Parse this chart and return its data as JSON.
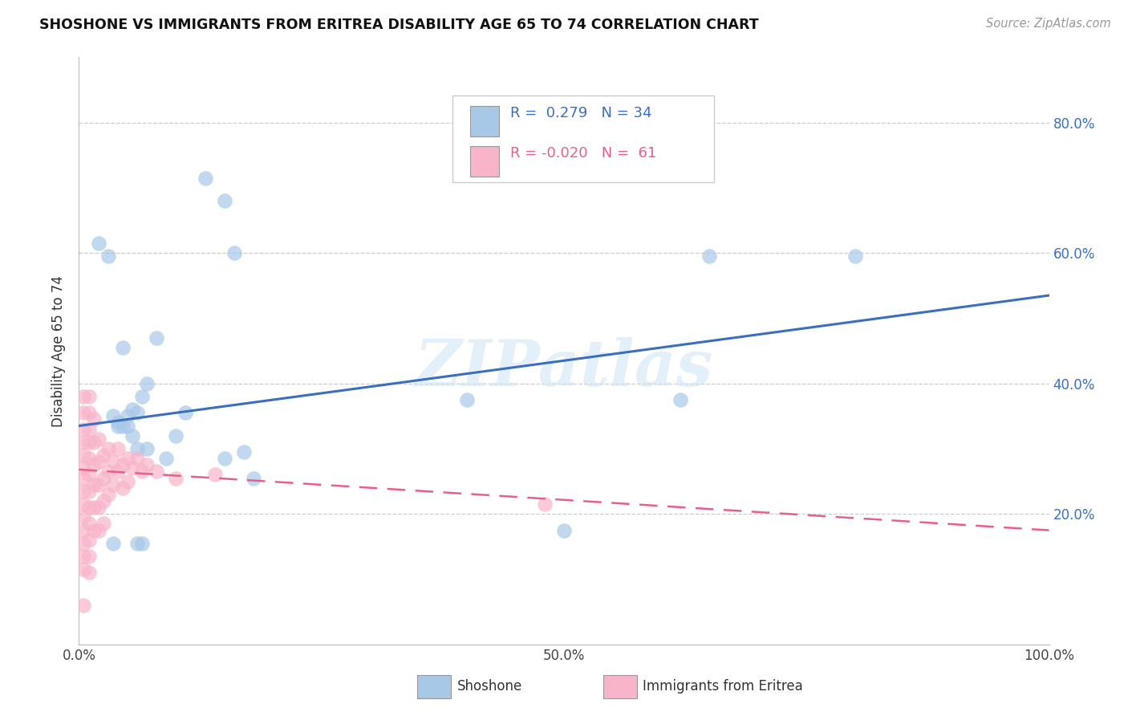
{
  "title": "SHOSHONE VS IMMIGRANTS FROM ERITREA DISABILITY AGE 65 TO 74 CORRELATION CHART",
  "source": "Source: ZipAtlas.com",
  "ylabel": "Disability Age 65 to 74",
  "watermark": "ZIPatlas",
  "legend_blue_r": "0.279",
  "legend_blue_n": "34",
  "legend_pink_r": "-0.020",
  "legend_pink_n": "61",
  "xlim": [
    0.0,
    1.0
  ],
  "ylim": [
    0.0,
    0.9
  ],
  "xticks": [
    0.0,
    0.1,
    0.2,
    0.3,
    0.4,
    0.5,
    0.6,
    0.7,
    0.8,
    0.9,
    1.0
  ],
  "xticklabels": [
    "0.0%",
    "",
    "",
    "",
    "",
    "50.0%",
    "",
    "",
    "",
    "",
    "100.0%"
  ],
  "yticks": [
    0.2,
    0.4,
    0.6,
    0.8
  ],
  "yticklabels_right": [
    "20.0%",
    "40.0%",
    "60.0%",
    "80.0%"
  ],
  "blue_color": "#a8c8e8",
  "pink_color": "#f8b4c8",
  "blue_line_color": "#3a6fbd",
  "pink_line_color": "#e8608a",
  "background_color": "#ffffff",
  "blue_scatter_x": [
    0.02,
    0.03,
    0.08,
    0.13,
    0.15,
    0.04,
    0.05,
    0.055,
    0.06,
    0.065,
    0.07,
    0.09,
    0.1,
    0.11,
    0.16,
    0.17,
    0.18,
    0.045,
    0.055,
    0.04,
    0.06,
    0.4,
    0.62,
    0.65,
    0.8,
    0.045,
    0.035,
    0.15,
    0.5,
    0.06,
    0.07,
    0.035,
    0.065,
    0.05
  ],
  "blue_scatter_y": [
    0.615,
    0.595,
    0.47,
    0.715,
    0.68,
    0.335,
    0.335,
    0.32,
    0.355,
    0.38,
    0.4,
    0.285,
    0.32,
    0.355,
    0.6,
    0.295,
    0.255,
    0.335,
    0.36,
    0.34,
    0.155,
    0.375,
    0.375,
    0.595,
    0.595,
    0.455,
    0.35,
    0.285,
    0.175,
    0.3,
    0.3,
    0.155,
    0.155,
    0.35
  ],
  "pink_scatter_x": [
    0.005,
    0.005,
    0.005,
    0.005,
    0.005,
    0.005,
    0.005,
    0.005,
    0.005,
    0.005,
    0.005,
    0.005,
    0.005,
    0.005,
    0.005,
    0.01,
    0.01,
    0.01,
    0.01,
    0.01,
    0.01,
    0.01,
    0.01,
    0.01,
    0.01,
    0.01,
    0.01,
    0.015,
    0.015,
    0.015,
    0.015,
    0.015,
    0.015,
    0.02,
    0.02,
    0.02,
    0.02,
    0.02,
    0.025,
    0.025,
    0.025,
    0.025,
    0.03,
    0.03,
    0.03,
    0.035,
    0.035,
    0.04,
    0.04,
    0.045,
    0.045,
    0.05,
    0.05,
    0.055,
    0.06,
    0.065,
    0.07,
    0.08,
    0.1,
    0.14,
    0.48
  ],
  "pink_scatter_y": [
    0.38,
    0.355,
    0.33,
    0.31,
    0.29,
    0.27,
    0.255,
    0.235,
    0.215,
    0.195,
    0.175,
    0.155,
    0.135,
    0.115,
    0.06,
    0.38,
    0.355,
    0.33,
    0.31,
    0.285,
    0.26,
    0.235,
    0.21,
    0.185,
    0.16,
    0.135,
    0.11,
    0.345,
    0.31,
    0.275,
    0.245,
    0.21,
    0.175,
    0.315,
    0.28,
    0.245,
    0.21,
    0.175,
    0.29,
    0.255,
    0.22,
    0.185,
    0.3,
    0.265,
    0.23,
    0.28,
    0.245,
    0.3,
    0.265,
    0.275,
    0.24,
    0.285,
    0.25,
    0.27,
    0.285,
    0.265,
    0.275,
    0.265,
    0.255,
    0.26,
    0.215
  ],
  "blue_trend_y_start": 0.335,
  "blue_trend_y_end": 0.535,
  "pink_trend_y_start": 0.268,
  "pink_trend_y_end": 0.175,
  "legend_label_blue": "Shoshone",
  "legend_label_pink": "Immigrants from Eritrea"
}
